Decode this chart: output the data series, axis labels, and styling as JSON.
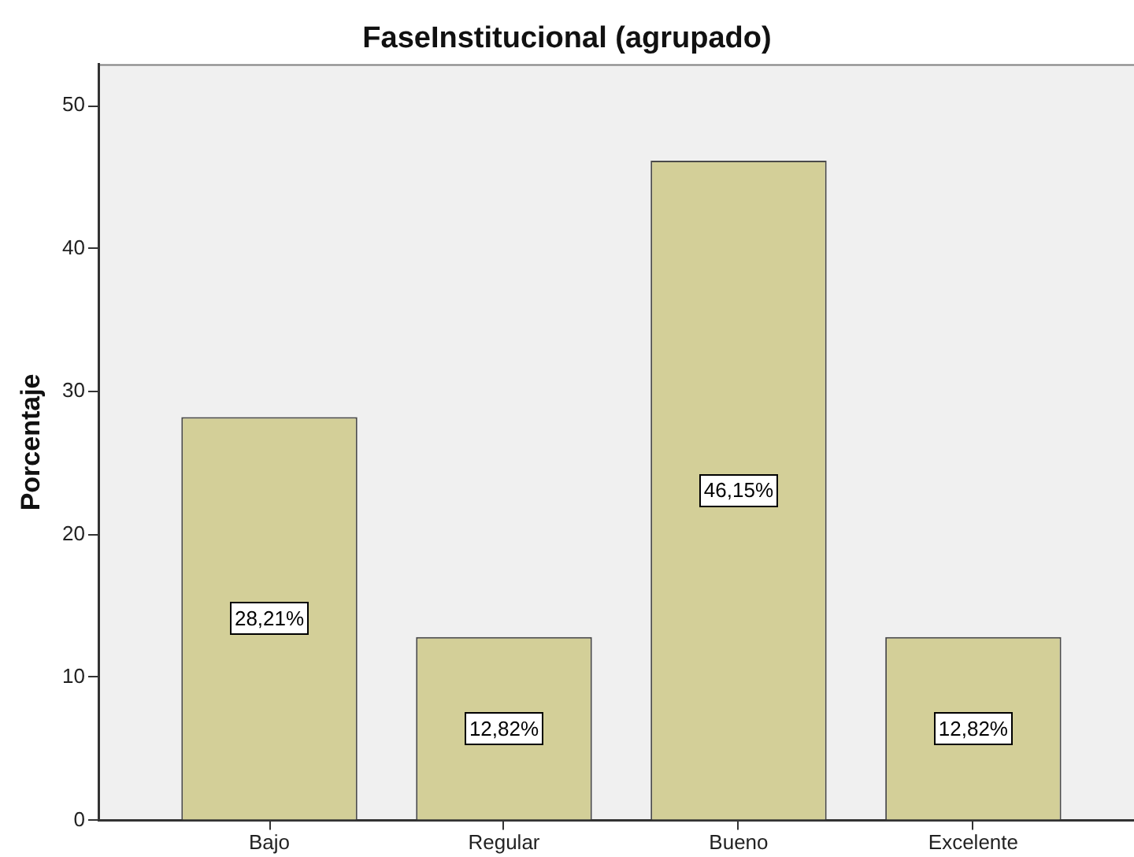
{
  "chart_data": {
    "type": "bar",
    "title": "FaseInstitucional (agrupado)",
    "ylabel": "Porcentaje",
    "categories": [
      "Bajo",
      "Regular",
      "Bueno",
      "Excelente"
    ],
    "values": [
      28.21,
      12.82,
      46.15,
      12.82
    ],
    "value_labels": [
      "28,21%",
      "12,82%",
      "46,15%",
      "12,82%"
    ],
    "color": "#d3cf98",
    "ylim": [
      0,
      52.9
    ],
    "yticks": [
      0,
      10,
      20,
      30,
      40,
      50
    ]
  }
}
